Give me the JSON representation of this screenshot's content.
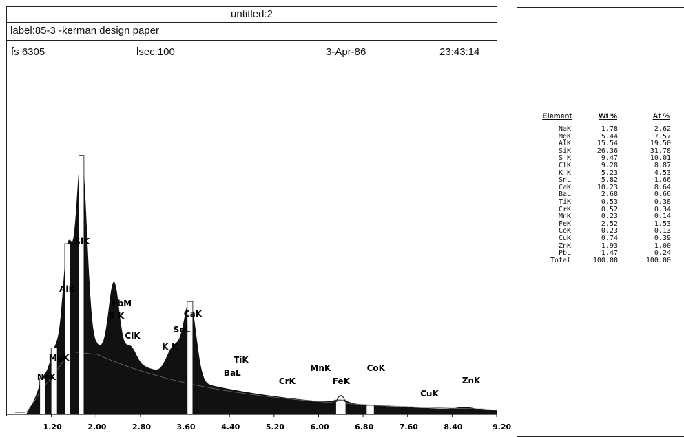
{
  "header": {
    "title": "untitled:2",
    "label": "label:85-3   -kerman  design paper",
    "fs": "fs 6305",
    "lsec": "lsec:100",
    "date": "3-Apr-86",
    "time": "23:43:14"
  },
  "chart_data": {
    "type": "area",
    "xlabel": "",
    "ylabel": "",
    "x_ticks": [
      "1.20",
      "2.00",
      "2.80",
      "3.60",
      "4.40",
      "5.20",
      "6.00",
      "6.80",
      "7.60",
      "8.40",
      "9.20"
    ],
    "xlim": [
      0.4,
      9.2
    ],
    "ylim": [
      0,
      100
    ],
    "peaks": [
      {
        "label": "NaK",
        "x": 1.04,
        "y": 10
      },
      {
        "label": "MgK",
        "x": 1.25,
        "y": 18
      },
      {
        "label": "AlK",
        "x": 1.49,
        "y": 46
      },
      {
        "label": "SiK",
        "x": 1.74,
        "y": 72
      },
      {
        "label": "PbM",
        "x": 2.34,
        "y": 27
      },
      {
        "label": "S K",
        "x": 2.31,
        "y": 27
      },
      {
        "label": "ClK",
        "x": 2.62,
        "y": 19
      },
      {
        "label": "K K",
        "x": 3.31,
        "y": 14
      },
      {
        "label": "SnL",
        "x": 3.44,
        "y": 17
      },
      {
        "label": "CaK",
        "x": 3.69,
        "y": 31
      },
      {
        "label": "TiK",
        "x": 4.51,
        "y": 4
      },
      {
        "label": "BaL",
        "x": 4.47,
        "y": 4
      },
      {
        "label": "CrK",
        "x": 5.41,
        "y": 3
      },
      {
        "label": "MnK",
        "x": 5.9,
        "y": 2
      },
      {
        "label": "FeK",
        "x": 6.4,
        "y": 4
      },
      {
        "label": "CoK",
        "x": 6.93,
        "y": 2
      },
      {
        "label": "CuK",
        "x": 8.05,
        "y": 1
      },
      {
        "label": "ZnK",
        "x": 8.64,
        "y": 2
      }
    ],
    "colors": {
      "fill": "#111111",
      "background_curve": "#6f6f6f"
    }
  },
  "results": {
    "headers": {
      "element": "Element",
      "wt": "Wt %",
      "at": "At %"
    },
    "rows": [
      {
        "element": "NaK",
        "wt": "1.78",
        "at": "2.62"
      },
      {
        "element": "MgK",
        "wt": "5.44",
        "at": "7.57"
      },
      {
        "element": "AlK",
        "wt": "15.54",
        "at": "19.50"
      },
      {
        "element": "SiK",
        "wt": "26.36",
        "at": "31.78"
      },
      {
        "element": "S K",
        "wt": "9.47",
        "at": "10.01"
      },
      {
        "element": "ClK",
        "wt": "9.28",
        "at": "8.87"
      },
      {
        "element": "K K",
        "wt": "5.23",
        "at": "4.53"
      },
      {
        "element": "SnL",
        "wt": "5.82",
        "at": "1.66"
      },
      {
        "element": "CaK",
        "wt": "10.23",
        "at": "8.64"
      },
      {
        "element": "BaL",
        "wt": "2.68",
        "at": "0.66"
      },
      {
        "element": "TiK",
        "wt": "0.53",
        "at": "0.38"
      },
      {
        "element": "CrK",
        "wt": "0.52",
        "at": "0.34"
      },
      {
        "element": "MnK",
        "wt": "0.23",
        "at": "0.14"
      },
      {
        "element": "FeK",
        "wt": "2.52",
        "at": "1.53"
      },
      {
        "element": "CoK",
        "wt": "0.23",
        "at": "0.13"
      },
      {
        "element": "CuK",
        "wt": "0.74",
        "at": "0.39"
      },
      {
        "element": "ZnK",
        "wt": "1.93",
        "at": "1.00"
      },
      {
        "element": "PbL",
        "wt": "1.47",
        "at": "0.24"
      },
      {
        "element": "Total",
        "wt": "100.00",
        "at": "100.00"
      }
    ]
  }
}
